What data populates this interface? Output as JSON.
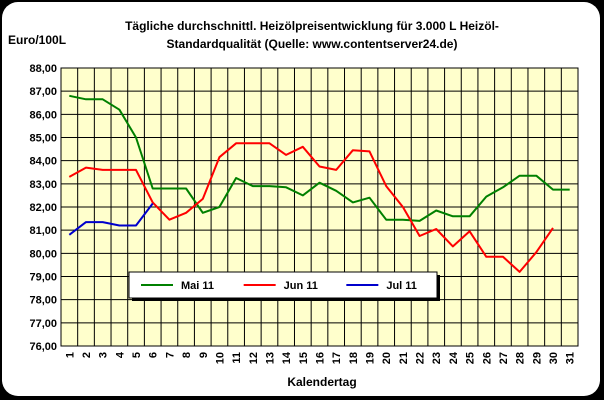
{
  "chart_data": {
    "type": "line",
    "title": "Tägliche durchschnittl. Heizölpreisentwicklung für 3.000 L Heizöl-",
    "subtitle": "Standardqualität (Quelle: www.contentserver24.de)",
    "ylabel": "Euro/100L",
    "xlabel": "Kalendertag",
    "ylim": [
      76,
      88
    ],
    "yticks": [
      "76,00",
      "77,00",
      "78,00",
      "79,00",
      "80,00",
      "81,00",
      "82,00",
      "83,00",
      "84,00",
      "85,00",
      "86,00",
      "87,00",
      "88,00"
    ],
    "x": [
      1,
      2,
      3,
      4,
      5,
      6,
      7,
      8,
      9,
      10,
      11,
      12,
      13,
      14,
      15,
      16,
      17,
      18,
      19,
      20,
      21,
      22,
      23,
      24,
      25,
      26,
      27,
      28,
      29,
      30,
      31
    ],
    "xticks": [
      "1",
      "2",
      "3",
      "4",
      "5",
      "6",
      "7",
      "8",
      "9",
      "10",
      "11",
      "12",
      "13",
      "14",
      "15",
      "16",
      "17",
      "18",
      "19",
      "20",
      "21",
      "22",
      "23",
      "24",
      "25",
      "26",
      "27",
      "28",
      "29",
      "30",
      "31"
    ],
    "grid": true,
    "legend": "inside-bottom-center",
    "background": "#ffffcc",
    "series": [
      {
        "name": "Mai 11",
        "color": "#008000",
        "values": [
          86.8,
          86.65,
          86.65,
          86.2,
          85.0,
          82.8,
          82.8,
          82.8,
          81.75,
          82.0,
          83.25,
          82.9,
          82.9,
          82.85,
          82.5,
          83.05,
          82.7,
          82.2,
          82.4,
          81.45,
          81.45,
          81.4,
          81.85,
          81.6,
          81.6,
          82.45,
          82.85,
          83.35,
          83.35,
          82.75,
          82.75
        ]
      },
      {
        "name": "Jun 11",
        "color": "#ff0000",
        "values": [
          83.3,
          83.7,
          83.6,
          83.6,
          83.6,
          82.2,
          81.45,
          81.75,
          82.35,
          84.15,
          84.75,
          84.75,
          84.75,
          84.25,
          84.6,
          83.75,
          83.6,
          84.45,
          84.4,
          82.9,
          82.0,
          80.75,
          81.05,
          80.3,
          80.95,
          79.85,
          79.85,
          79.2,
          80.05,
          81.1,
          null
        ]
      },
      {
        "name": "Jul 11",
        "color": "#0000cc",
        "values": [
          80.8,
          81.35,
          81.35,
          81.2,
          81.2,
          82.15,
          null,
          null,
          null,
          null,
          null,
          null,
          null,
          null,
          null,
          null,
          null,
          null,
          null,
          null,
          null,
          null,
          null,
          null,
          null,
          null,
          null,
          null,
          null,
          null,
          null
        ]
      }
    ]
  }
}
